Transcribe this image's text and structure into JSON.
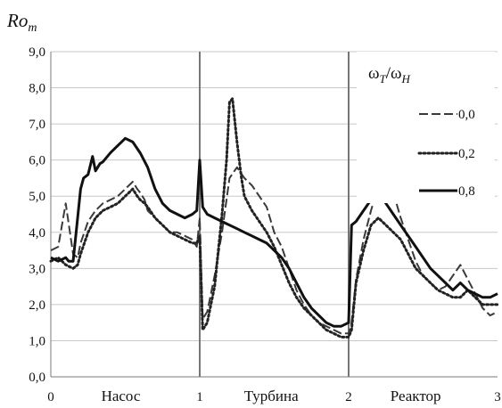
{
  "chart_data": {
    "type": "line",
    "ylabel": {
      "main": "Ro",
      "sub": "m"
    },
    "ylim": [
      0,
      9
    ],
    "yticks": [
      "0,0",
      "1,0",
      "2,0",
      "3,0",
      "4,0",
      "5,0",
      "6,0",
      "7,0",
      "8,0",
      "9,0"
    ],
    "xlim": [
      0,
      3
    ],
    "xticks": [
      "0",
      "1",
      "2",
      "3"
    ],
    "regions": [
      "Насос",
      "Турбина",
      "Реактор"
    ],
    "dividers": [
      1,
      2
    ],
    "grid": "horizontal",
    "legend": {
      "position": "top-right",
      "title": {
        "w1": "ω",
        "s1": "T",
        "slash": "/",
        "w2": "ω",
        "s2": "H"
      }
    },
    "series": [
      {
        "name": "0,0",
        "style": "dashed",
        "x": [
          0,
          0.05,
          0.1,
          0.15,
          0.18,
          0.2,
          0.25,
          0.3,
          0.35,
          0.4,
          0.45,
          0.5,
          0.55,
          0.58,
          0.6,
          0.63,
          0.65,
          0.7,
          0.75,
          0.8,
          0.85,
          0.9,
          0.95,
          0.98,
          1.0,
          1.02,
          1.05,
          1.1,
          1.15,
          1.2,
          1.25,
          1.3,
          1.35,
          1.4,
          1.45,
          1.5,
          1.55,
          1.6,
          1.65,
          1.7,
          1.75,
          1.8,
          1.85,
          1.9,
          1.95,
          2.0,
          2.02,
          2.05,
          2.1,
          2.15,
          2.2,
          2.25,
          2.3,
          2.35,
          2.4,
          2.45,
          2.5,
          2.55,
          2.6,
          2.65,
          2.7,
          2.75,
          2.8,
          2.85,
          2.9,
          2.95,
          3.0
        ],
        "y": [
          3.5,
          3.6,
          4.8,
          3.4,
          3.3,
          3.7,
          4.3,
          4.6,
          4.8,
          4.9,
          5.0,
          5.2,
          5.4,
          5.2,
          5.1,
          4.9,
          4.6,
          4.4,
          4.2,
          4.0,
          4.0,
          3.9,
          3.8,
          3.6,
          4.4,
          1.6,
          1.8,
          2.8,
          4.0,
          5.5,
          5.8,
          5.5,
          5.3,
          5.0,
          4.7,
          4.0,
          3.6,
          3.0,
          2.4,
          2.0,
          1.7,
          1.5,
          1.4,
          1.3,
          1.2,
          1.2,
          1.5,
          2.7,
          3.8,
          4.6,
          5.3,
          5.6,
          5.1,
          4.4,
          3.8,
          3.2,
          2.8,
          2.6,
          2.4,
          2.5,
          2.8,
          3.1,
          2.7,
          2.3,
          1.9,
          1.7,
          1.8
        ]
      },
      {
        "name": "0,2",
        "style": "dotted",
        "x": [
          0,
          0.05,
          0.1,
          0.15,
          0.18,
          0.2,
          0.25,
          0.3,
          0.35,
          0.4,
          0.45,
          0.5,
          0.55,
          0.58,
          0.6,
          0.63,
          0.65,
          0.7,
          0.75,
          0.8,
          0.85,
          0.9,
          0.95,
          0.98,
          1.0,
          1.02,
          1.05,
          1.1,
          1.15,
          1.18,
          1.2,
          1.22,
          1.25,
          1.28,
          1.3,
          1.35,
          1.4,
          1.45,
          1.5,
          1.55,
          1.6,
          1.65,
          1.7,
          1.75,
          1.8,
          1.85,
          1.9,
          1.95,
          2.0,
          2.02,
          2.05,
          2.1,
          2.15,
          2.2,
          2.25,
          2.3,
          2.35,
          2.4,
          2.45,
          2.5,
          2.55,
          2.6,
          2.65,
          2.7,
          2.75,
          2.8,
          2.85,
          2.9,
          2.95,
          3.0
        ],
        "y": [
          3.2,
          3.3,
          3.1,
          3.0,
          3.1,
          3.4,
          4.0,
          4.4,
          4.6,
          4.7,
          4.8,
          5.0,
          5.2,
          5.0,
          4.9,
          4.8,
          4.7,
          4.4,
          4.2,
          4.0,
          3.9,
          3.8,
          3.7,
          3.7,
          3.9,
          1.3,
          1.5,
          2.5,
          4.5,
          6.0,
          7.6,
          7.7,
          6.5,
          5.5,
          5.0,
          4.6,
          4.3,
          4.0,
          3.6,
          3.1,
          2.6,
          2.2,
          1.9,
          1.7,
          1.5,
          1.3,
          1.2,
          1.1,
          1.1,
          1.3,
          2.6,
          3.5,
          4.2,
          4.4,
          4.2,
          4.0,
          3.8,
          3.4,
          3.0,
          2.8,
          2.6,
          2.4,
          2.3,
          2.2,
          2.2,
          2.4,
          2.2,
          2.0,
          2.0,
          2.0
        ]
      },
      {
        "name": "0,8",
        "style": "solid",
        "x": [
          0,
          0.05,
          0.1,
          0.12,
          0.15,
          0.17,
          0.2,
          0.22,
          0.25,
          0.28,
          0.3,
          0.33,
          0.35,
          0.4,
          0.45,
          0.5,
          0.55,
          0.6,
          0.65,
          0.7,
          0.75,
          0.8,
          0.85,
          0.9,
          0.95,
          0.98,
          1.0,
          1.02,
          1.05,
          1.1,
          1.15,
          1.2,
          1.25,
          1.3,
          1.35,
          1.4,
          1.45,
          1.5,
          1.55,
          1.6,
          1.65,
          1.7,
          1.75,
          1.8,
          1.85,
          1.9,
          1.95,
          2.0,
          2.02,
          2.05,
          2.1,
          2.15,
          2.2,
          2.25,
          2.3,
          2.35,
          2.4,
          2.45,
          2.5,
          2.55,
          2.6,
          2.65,
          2.7,
          2.75,
          2.8,
          2.85,
          2.9,
          2.95,
          3.0
        ],
        "y": [
          3.3,
          3.2,
          3.3,
          3.2,
          3.2,
          4.0,
          5.2,
          5.5,
          5.6,
          6.1,
          5.7,
          5.9,
          5.95,
          6.2,
          6.4,
          6.6,
          6.5,
          6.2,
          5.8,
          5.2,
          4.8,
          4.6,
          4.5,
          4.4,
          4.5,
          4.6,
          6.0,
          4.7,
          4.5,
          4.4,
          4.3,
          4.2,
          4.1,
          4.0,
          3.9,
          3.8,
          3.7,
          3.5,
          3.3,
          3.0,
          2.6,
          2.2,
          1.9,
          1.7,
          1.5,
          1.4,
          1.4,
          1.5,
          4.2,
          4.3,
          4.6,
          4.9,
          5.1,
          4.8,
          4.5,
          4.2,
          3.9,
          3.6,
          3.3,
          3.0,
          2.8,
          2.6,
          2.4,
          2.6,
          2.4,
          2.3,
          2.2,
          2.2,
          2.3
        ]
      }
    ]
  }
}
